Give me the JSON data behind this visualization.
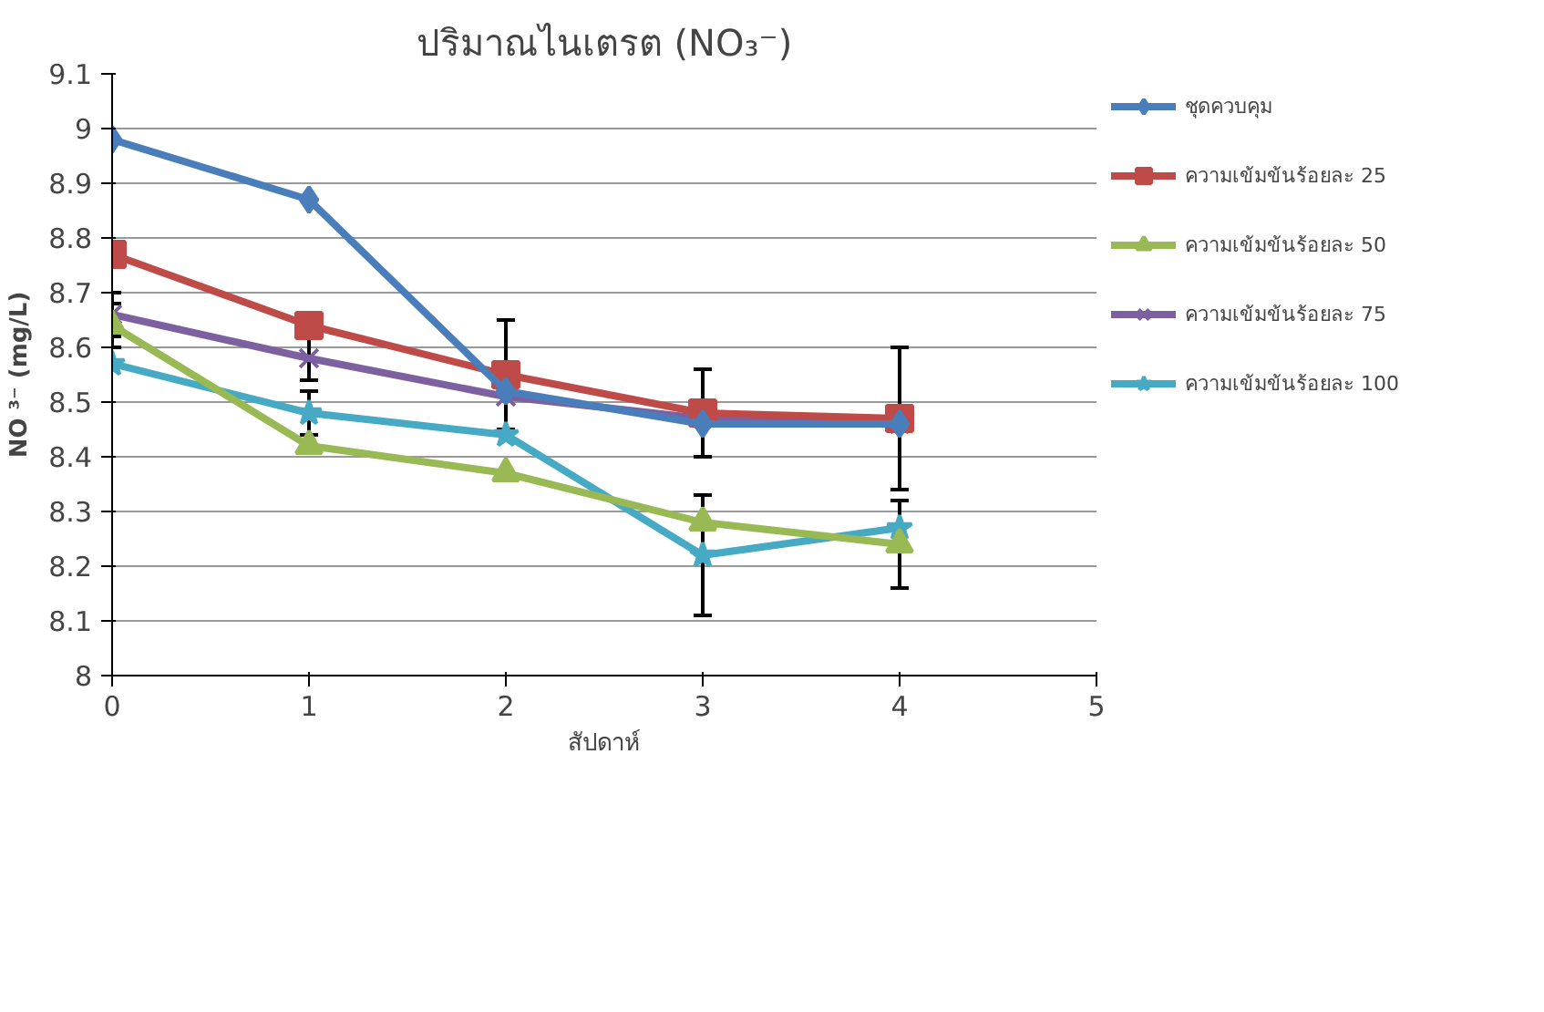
{
  "chart_data": {
    "type": "line",
    "title": "ปริมาณไนเตรต (NO₃⁻)",
    "xlabel": "สัปดาห์",
    "ylabel": "NO ³⁻ (mg/L)",
    "x": [
      0,
      1,
      2,
      3,
      4
    ],
    "xlim": [
      0,
      5
    ],
    "xticks": [
      0,
      1,
      2,
      3,
      4,
      5
    ],
    "ylim": [
      8,
      9.1
    ],
    "yticks": [
      8,
      8.1,
      8.2,
      8.3,
      8.4,
      8.5,
      8.6,
      8.7,
      8.8,
      8.9,
      9,
      9.1
    ],
    "grid": "y",
    "legend": "right",
    "line_style": "solid",
    "series": [
      {
        "name": "ชุดควบคุม",
        "color": "#4a7ebb",
        "marker": "diamond",
        "values": [
          8.98,
          8.87,
          8.52,
          8.46,
          8.46
        ],
        "errors": [
          null,
          null,
          null,
          null,
          null
        ]
      },
      {
        "name": "ความเข้มข้นร้อยละ 25",
        "color": "#be4b48",
        "marker": "square",
        "values": [
          8.77,
          8.64,
          8.55,
          8.48,
          8.47
        ],
        "errors": [
          null,
          null,
          0.1,
          0.08,
          0.13
        ]
      },
      {
        "name": "ความเข้มข้นร้อยละ 50",
        "color": "#98b954",
        "marker": "triangle",
        "values": [
          8.64,
          8.42,
          8.37,
          8.28,
          8.24
        ],
        "errors": [
          0.04,
          null,
          null,
          null,
          0.08
        ]
      },
      {
        "name": "ความเข้มข้นร้อยละ 75",
        "color": "#7d60a0",
        "marker": "cross",
        "values": [
          8.66,
          8.58,
          8.51,
          8.47,
          8.46
        ],
        "errors": [
          0.04,
          0.04,
          null,
          null,
          null
        ]
      },
      {
        "name": "ความเข้มข้นร้อยละ 100",
        "color": "#46aac5",
        "marker": "star",
        "values": [
          8.57,
          8.48,
          8.44,
          8.22,
          8.27
        ],
        "errors": [
          null,
          0.04,
          null,
          0.11,
          null
        ]
      }
    ]
  }
}
